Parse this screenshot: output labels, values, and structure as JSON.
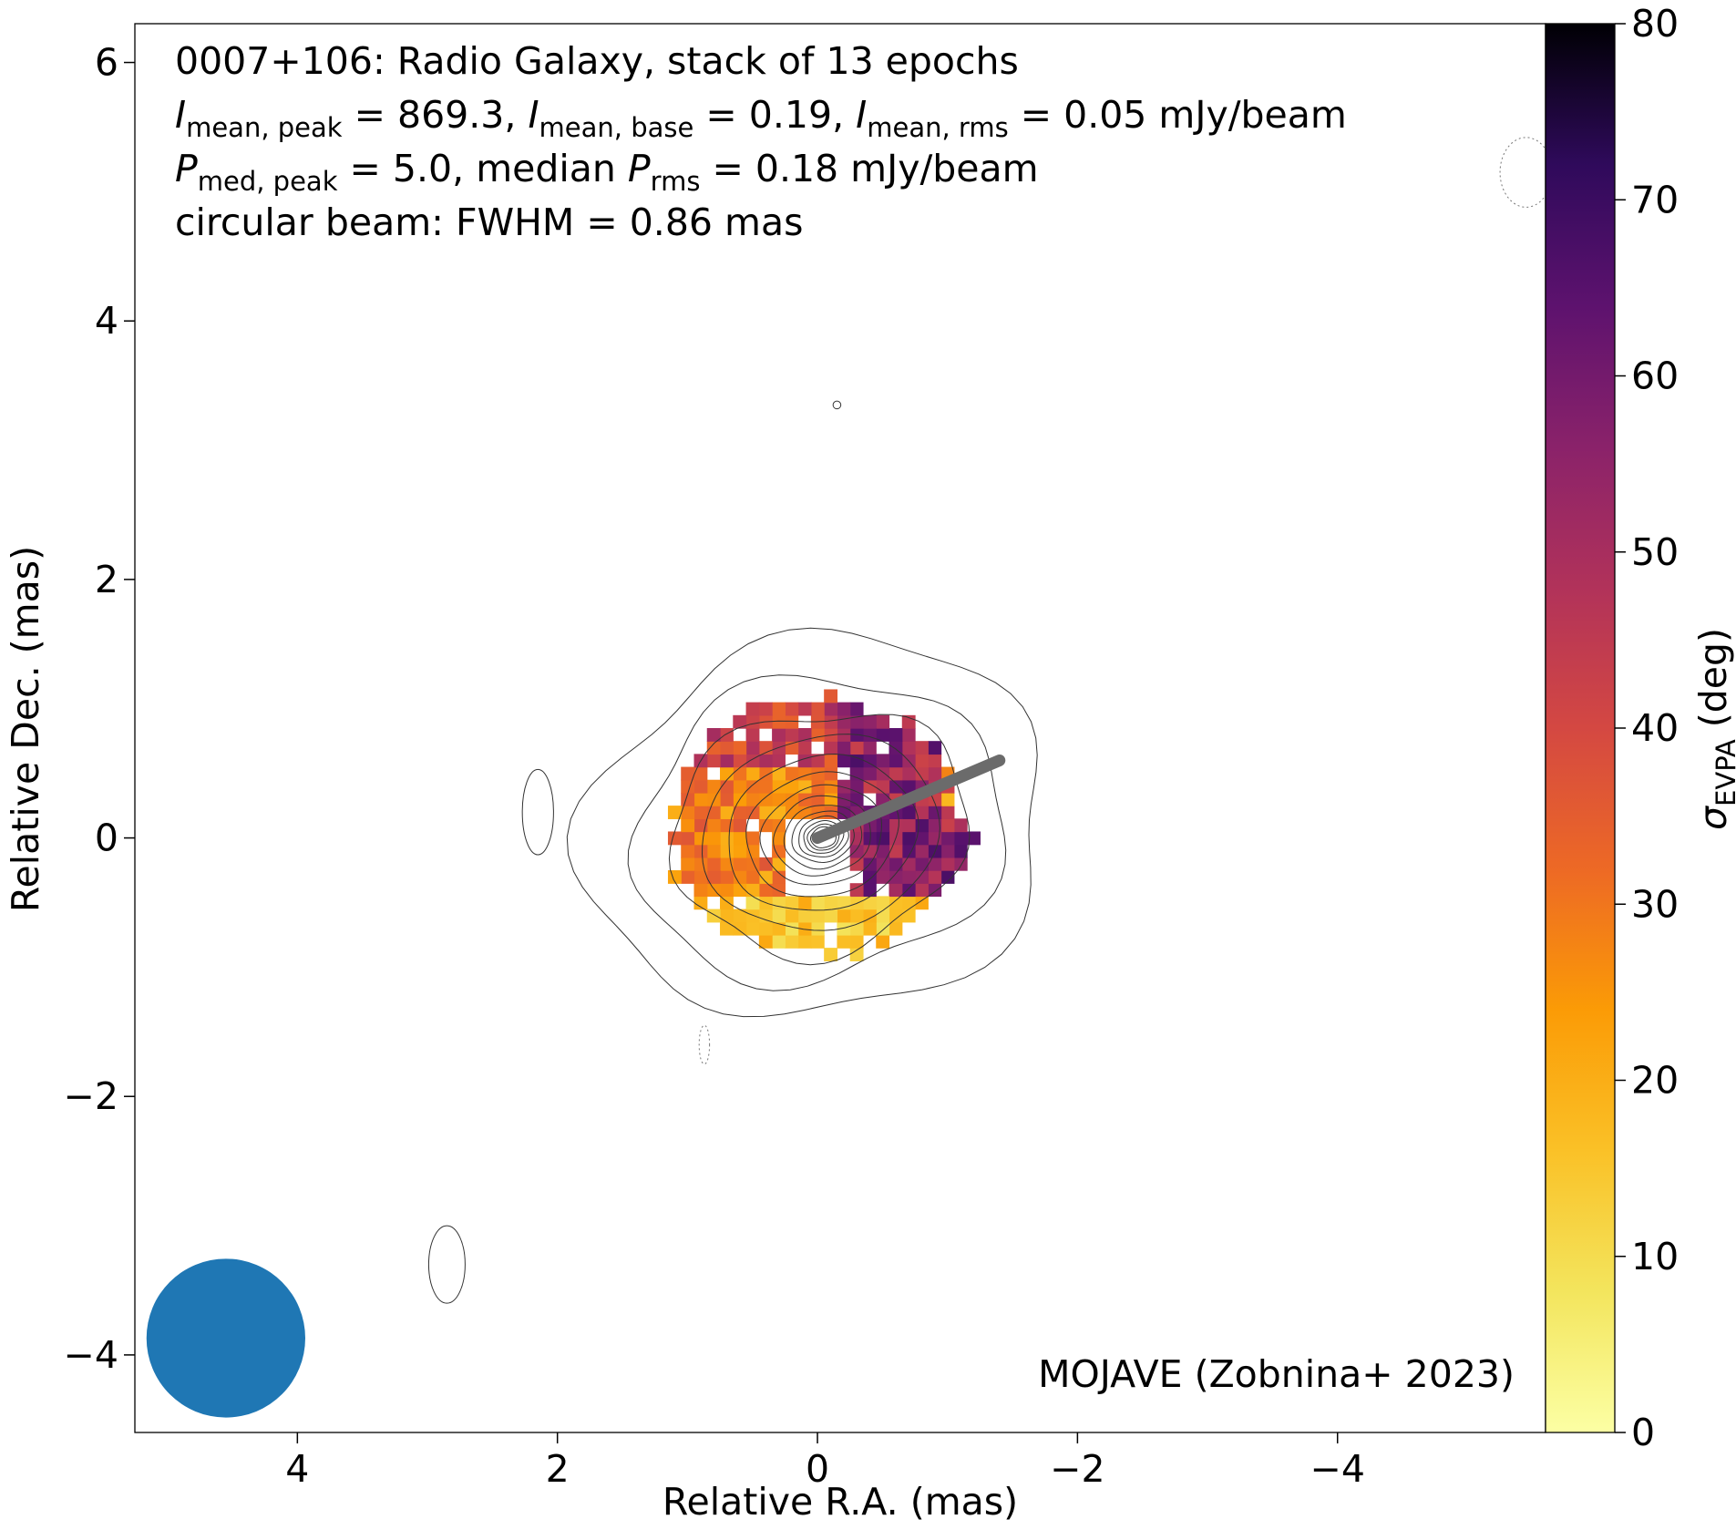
{
  "chart_data": {
    "type": "heatmap",
    "title_lines": [
      "0007+106: Radio Galaxy, stack of 13 epochs",
      "I_mean,peak = 869.3, I_mean,base = 0.19, I_mean,rms = 0.05 mJy/beam",
      "P_med,peak = 5.0, median P_rms = 0.18 mJy/beam",
      "circular beam: FWHM = 0.86 mas"
    ],
    "title_parts": {
      "l2_a": "mean, peak",
      "l2_b": " = 869.3, ",
      "l2_c": "mean, base",
      "l2_d": " = 0.19, ",
      "l2_e": "mean, rms",
      "l2_f": " = 0.05 mJy/beam",
      "l3_a": "med, peak",
      "l3_b": " = 5.0, median ",
      "l3_c": "rms",
      "l3_d": " = 0.18 mJy/beam"
    },
    "symbols": {
      "I": "I",
      "P": "P",
      "sigma": "σ"
    },
    "credit": "MOJAVE (Zobnina+ 2023)",
    "xlabel": "Relative R.A. (mas)",
    "ylabel": "Relative Dec. (mas)",
    "xlim": [
      5.25,
      -5.6
    ],
    "ylim": [
      -4.6,
      6.3
    ],
    "x_ticks": [
      4,
      2,
      0,
      -2,
      -4
    ],
    "y_ticks": [
      6,
      4,
      2,
      0,
      -2,
      -4
    ],
    "x_tick_labels": [
      "4",
      "2",
      "0",
      "−2",
      "−4"
    ],
    "y_tick_labels": [
      "6",
      "4",
      "2",
      "0",
      "−2",
      "−4"
    ],
    "colorbar": {
      "label_sub": "EVPA",
      "label_tail": " (deg)",
      "range": [
        0,
        80
      ],
      "ticks": [
        0,
        10,
        20,
        30,
        40,
        50,
        60,
        70,
        80
      ],
      "tick_labels": [
        "0",
        "10",
        "20",
        "30",
        "40",
        "50",
        "60",
        "70",
        "80"
      ],
      "colormap": "inferno_r"
    },
    "beam": {
      "x": 4.55,
      "y": -3.87,
      "fwhm": 0.86,
      "color": "#1f77b4"
    },
    "jet_direction": {
      "x0": 0,
      "y0": 0,
      "x1": -1.4,
      "y1": 0.6,
      "color": "#6b6b6b"
    },
    "contours": {
      "center": [
        0,
        0
      ],
      "levels_shown": 14,
      "outer_semi_axes": [
        1.8,
        1.45
      ],
      "side_blobs": [
        {
          "x": 2.15,
          "y": 0.2,
          "rx": 0.12,
          "ry": 0.33,
          "style": "solid"
        },
        {
          "x": 2.85,
          "y": -3.3,
          "rx": 0.14,
          "ry": 0.3,
          "style": "solid"
        },
        {
          "x": -5.45,
          "y": 5.15,
          "rx": 0.2,
          "ry": 0.27,
          "style": "dotted"
        },
        {
          "x": 0.87,
          "y": -1.6,
          "rx": 0.04,
          "ry": 0.15,
          "style": "dotted"
        },
        {
          "x": -0.15,
          "y": 3.35,
          "rx": 0.03,
          "ry": 0.03,
          "style": "solid"
        }
      ]
    },
    "sigma_evpa_map": {
      "cell_size_mas": 0.1,
      "region_center": [
        0.0,
        0.1
      ],
      "region_semi_axes": [
        1.22,
        1.05
      ],
      "hole_center": [
        0.0,
        -0.15
      ],
      "hole_semi_axes": [
        0.3,
        0.35
      ],
      "value_range_deg": [
        2,
        72
      ],
      "west_side_mean_deg": 55,
      "east_side_mean_deg": 28,
      "south_rim_mean_deg": 15
    }
  }
}
